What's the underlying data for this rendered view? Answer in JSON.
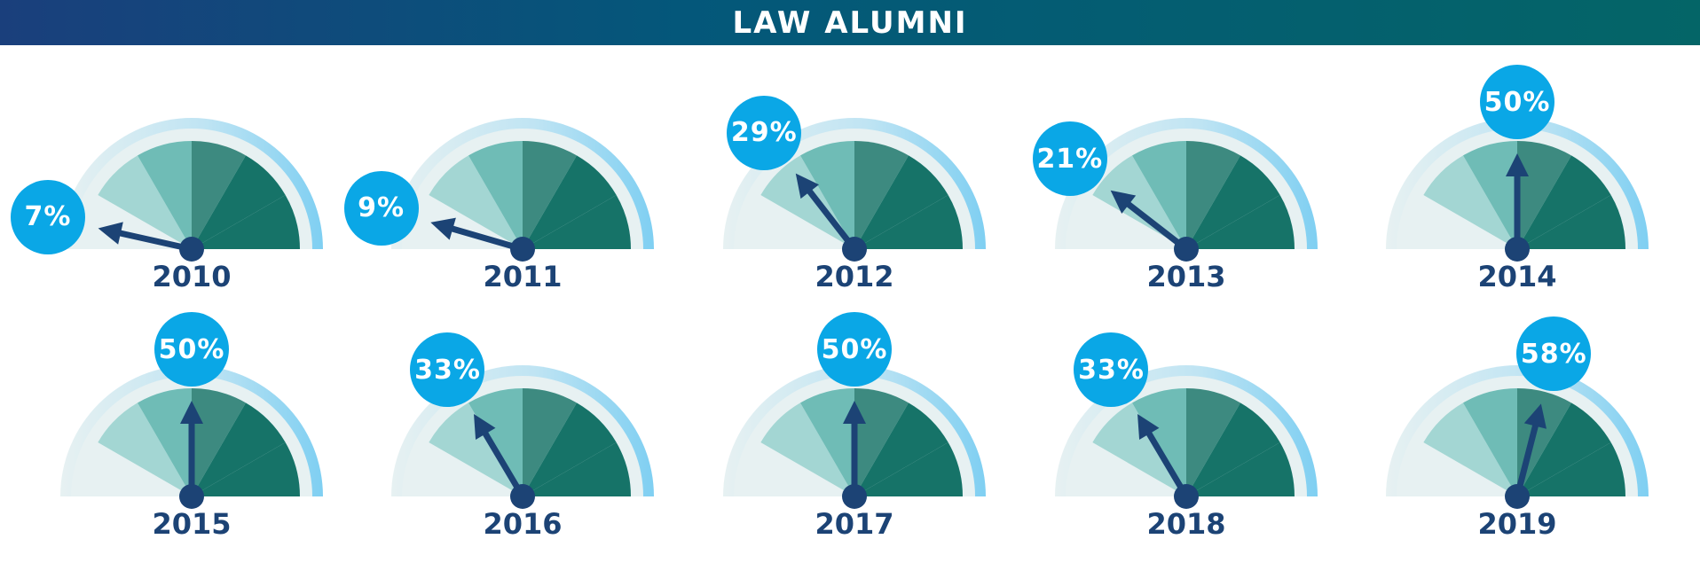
{
  "header": {
    "title": "LAW ALUMNI"
  },
  "colors": {
    "banner": [
      "#1a3f7c",
      "#04577a",
      "#046567"
    ],
    "outer_ring": "#7fcff2",
    "inner_fade": "#e7f1f2",
    "segments": [
      "#a3d6d3",
      "#6fbcb6",
      "#3d8a80",
      "#167368"
    ],
    "needle": "#1c4375",
    "bubble": "#0aa7e6"
  },
  "chart_data": {
    "type": "gauge",
    "title": "LAW ALUMNI",
    "scale": [
      0,
      100
    ],
    "unit": "%",
    "categories": [
      "2010",
      "2011",
      "2012",
      "2013",
      "2014",
      "2015",
      "2016",
      "2017",
      "2018",
      "2019"
    ],
    "values": [
      7,
      9,
      29,
      21,
      50,
      50,
      33,
      50,
      33,
      58
    ],
    "labels": [
      "7%",
      "9%",
      "29%",
      "21%",
      "50%",
      "50%",
      "33%",
      "50%",
      "33%",
      "58%"
    ]
  }
}
